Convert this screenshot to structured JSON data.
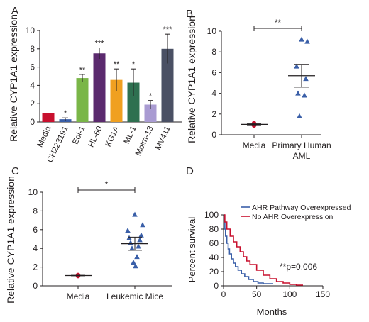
{
  "figure": {
    "panels": [
      {
        "letter": "A",
        "ylabel": "Relative CYP1A1 expression"
      },
      {
        "letter": "B",
        "ylabel": "Relative CYP1A1 expression"
      },
      {
        "letter": "C",
        "ylabel": "Relative CYP1A1 expression"
      },
      {
        "letter": "D",
        "ylabel": "Percent survival",
        "xlabel": "Months"
      }
    ]
  },
  "chart_data": [
    {
      "panel": "A",
      "type": "bar",
      "ylabel": "Relative CYP1A1 expression",
      "ylim": [
        0,
        10
      ],
      "yticks": [
        0,
        2,
        4,
        6,
        8,
        10
      ],
      "categories": [
        "Media",
        "CH223191",
        "Eol-1",
        "HL-60",
        "KG1A",
        "ML-1",
        "Molm-13",
        "MV411"
      ],
      "values": [
        1.0,
        0.3,
        4.8,
        7.5,
        4.6,
        4.3,
        1.9,
        8.0
      ],
      "errors": [
        0,
        0.15,
        0.4,
        0.6,
        1.2,
        1.5,
        0.45,
        1.6
      ],
      "colors": [
        "#c8102e",
        "#3a5fa8",
        "#7ab648",
        "#5b2a6e",
        "#f0a020",
        "#2e7050",
        "#a99bd2",
        "#4a5064"
      ],
      "significance": [
        "",
        "*",
        "**",
        "***",
        "**",
        "*",
        "*",
        "***"
      ]
    },
    {
      "panel": "B",
      "type": "scatter",
      "ylabel": "Relative CYP1A1 expression",
      "ylim": [
        0,
        10
      ],
      "yticks": [
        0,
        2,
        4,
        6,
        8,
        10
      ],
      "categories": [
        "Media",
        "Primary Human AML"
      ],
      "groups": [
        {
          "name": "Media",
          "marker": "circle",
          "color": "#c8102e",
          "points": [
            0.95,
            1.05,
            1.1,
            0.9,
            1.0,
            1.05
          ],
          "mean": 1.0,
          "sem": 0.05
        },
        {
          "name": "Primary Human AML",
          "marker": "triangle",
          "color": "#3a5fa8",
          "points": [
            9.2,
            9.0,
            6.6,
            5.4,
            4.0,
            3.8,
            1.8
          ],
          "mean": 5.7,
          "sem": 1.1
        }
      ],
      "significance": "**"
    },
    {
      "panel": "C",
      "type": "scatter",
      "ylabel": "Relative CYP1A1 expression",
      "ylim": [
        0,
        10
      ],
      "yticks": [
        0,
        2,
        4,
        6,
        8,
        10
      ],
      "categories": [
        "Media",
        "Leukemic Mice"
      ],
      "groups": [
        {
          "name": "Media",
          "marker": "circle",
          "color": "#c8102e",
          "points": [
            1.05,
            1.1,
            1.15
          ],
          "mean": 1.1,
          "sem": 0.03
        },
        {
          "name": "Leukemic Mice",
          "marker": "triangle",
          "color": "#3a5fa8",
          "points": [
            7.6,
            6.5,
            5.9,
            5.4,
            5.1,
            4.9,
            4.6,
            4.2,
            4.0,
            3.1,
            2.5,
            2.1
          ],
          "mean": 4.5,
          "sem": 0.7
        }
      ],
      "significance": "*"
    },
    {
      "panel": "D",
      "type": "line",
      "ylabel": "Percent survival",
      "xlabel": "Months",
      "xlim": [
        0,
        150
      ],
      "ylim": [
        0,
        100
      ],
      "xticks": [
        0,
        50,
        100,
        150
      ],
      "yticks": [
        0,
        20,
        40,
        60,
        80,
        100
      ],
      "annotation": "**p=0.006",
      "legend_position": "top-right",
      "series": [
        {
          "name": "AHR Pathway Overexpressed",
          "color": "#3a5fa8",
          "x": [
            0,
            1,
            2,
            3,
            5,
            7,
            9,
            12,
            15,
            18,
            22,
            27,
            32,
            38,
            45,
            52,
            60,
            75
          ],
          "y": [
            100,
            90,
            80,
            70,
            60,
            52,
            45,
            38,
            32,
            27,
            22,
            17,
            13,
            9,
            6,
            4,
            3,
            3
          ]
        },
        {
          "name": "No AHR Overexpression",
          "color": "#c8102e",
          "x": [
            0,
            2,
            5,
            10,
            15,
            20,
            25,
            30,
            35,
            40,
            50,
            60,
            70,
            80,
            90,
            100,
            110,
            120
          ],
          "y": [
            100,
            90,
            80,
            70,
            62,
            55,
            48,
            41,
            35,
            30,
            22,
            15,
            10,
            6,
            4,
            2,
            1,
            1
          ]
        }
      ]
    }
  ]
}
